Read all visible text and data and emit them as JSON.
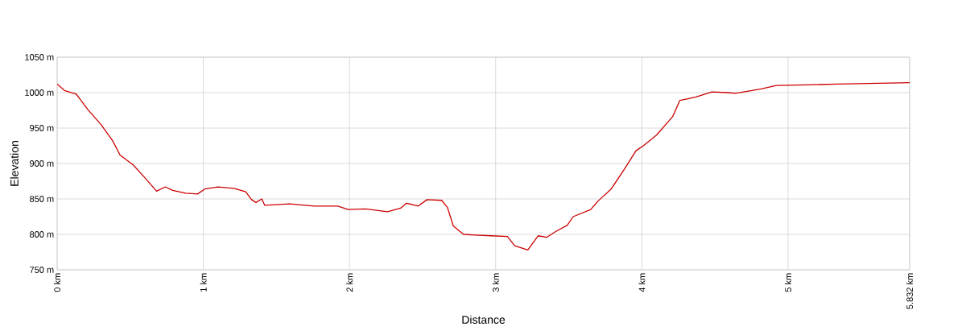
{
  "chart_data": {
    "type": "line",
    "xlabel": "Distance",
    "ylabel": "Elevation",
    "x": [
      0,
      0.05,
      0.13,
      0.16,
      0.21,
      0.3,
      0.38,
      0.43,
      0.52,
      0.6,
      0.68,
      0.74,
      0.79,
      0.88,
      0.96,
      1.01,
      1.1,
      1.21,
      1.29,
      1.33,
      1.36,
      1.4,
      1.42,
      1.59,
      1.76,
      1.92,
      1.99,
      2.11,
      2.26,
      2.35,
      2.39,
      2.47,
      2.53,
      2.63,
      2.67,
      2.71,
      2.78,
      2.86,
      2.97,
      3.08,
      3.13,
      3.22,
      3.29,
      3.35,
      3.41,
      3.49,
      3.53,
      3.65,
      3.7,
      3.79,
      3.88,
      3.96,
      4.01,
      4.1,
      4.21,
      4.26,
      4.31,
      4.37,
      4.48,
      4.59,
      4.64,
      4.81,
      4.92,
      5.12,
      5.34,
      5.832
    ],
    "series": [
      {
        "color": "#cc0000",
        "values": [
          1012,
          1003,
          998,
          990,
          976,
          955,
          932,
          912,
          898,
          880,
          861,
          867,
          862,
          858,
          857,
          864,
          867,
          865,
          860,
          849,
          845,
          850,
          841,
          843,
          840,
          840,
          835,
          836,
          832,
          837,
          844,
          840,
          849,
          848,
          838,
          812,
          800,
          799,
          798,
          797,
          784,
          778,
          798,
          796,
          804,
          813,
          825,
          835,
          847,
          864,
          892,
          918,
          925,
          940,
          966,
          989,
          991,
          994,
          1001,
          1000,
          999,
          1005,
          1010,
          1011,
          1012,
          1014
        ]
      }
    ],
    "xlim": [
      0,
      5.832
    ],
    "xticks": [
      {
        "value": 0,
        "label": "0 km"
      },
      {
        "value": 1,
        "label": "1 km"
      },
      {
        "value": 2,
        "label": "2 km"
      },
      {
        "value": 3,
        "label": "3 km"
      },
      {
        "value": 4,
        "label": "4 km"
      },
      {
        "value": 5,
        "label": "5 km"
      },
      {
        "value": 5.832,
        "label": "5.832 km"
      }
    ],
    "ylim": [
      750,
      1050
    ],
    "yticks": [
      {
        "value": 750,
        "label": "750 m"
      },
      {
        "value": 800,
        "label": "800 m"
      },
      {
        "value": 850,
        "label": "850 m"
      },
      {
        "value": 900,
        "label": "900 m"
      },
      {
        "value": 950,
        "label": "950 m"
      },
      {
        "value": 1000,
        "label": "1000 m"
      },
      {
        "value": 1050,
        "label": "1050 m"
      }
    ],
    "grid": true,
    "marker": "none",
    "line_style": "solid"
  }
}
